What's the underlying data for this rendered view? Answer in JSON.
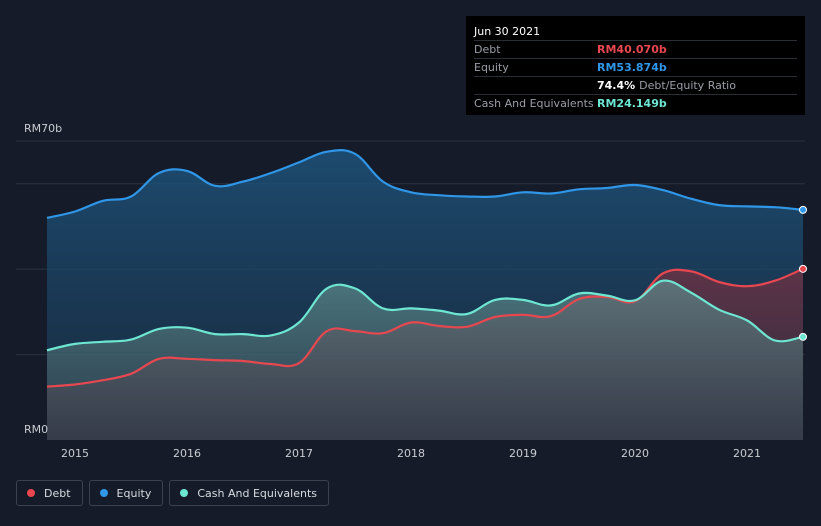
{
  "colors": {
    "debt": "#e8474f",
    "equity": "#2f96e8",
    "cash": "#6de6d2",
    "background": "#151b28",
    "grid": "#2b3240",
    "axis_text": "#c9ccd1"
  },
  "tooltip": {
    "date": "Jun 30 2021",
    "rows": [
      {
        "label": "Debt",
        "value": "RM40.070b",
        "color": "#e8474f",
        "suffix": ""
      },
      {
        "label": "Equity",
        "value": "RM53.874b",
        "color": "#2f96e8",
        "suffix": ""
      },
      {
        "label": "",
        "value": "74.4%",
        "color": "#ffffff",
        "suffix": "Debt/Equity Ratio"
      },
      {
        "label": "Cash And Equivalents",
        "value": "RM24.149b",
        "color": "#6de6d2",
        "suffix": ""
      }
    ]
  },
  "legend": [
    {
      "label": "Debt",
      "color": "#e8474f"
    },
    {
      "label": "Equity",
      "color": "#2f96e8"
    },
    {
      "label": "Cash And Equivalents",
      "color": "#6de6d2"
    }
  ],
  "chart_data": {
    "type": "area",
    "title": "",
    "xlabel": "",
    "ylabel": "",
    "ylim": [
      0,
      70
    ],
    "xlim": [
      2014.75,
      2021.5
    ],
    "y_tick_labels": [
      {
        "value": 70,
        "label": "RM70b"
      },
      {
        "value": 0,
        "label": "RM0"
      }
    ],
    "gridlines": [
      70,
      60,
      40,
      20
    ],
    "x_ticks": [
      2015,
      2016,
      2017,
      2018,
      2019,
      2020,
      2021
    ],
    "x_tick_labels": [
      "2015",
      "2016",
      "2017",
      "2018",
      "2019",
      "2020",
      "2021"
    ],
    "grid": true,
    "legend_position": "bottom-left",
    "series": [
      {
        "name": "Equity",
        "color": "#2f96e8",
        "points": [
          [
            2014.75,
            52.0
          ],
          [
            2015.0,
            53.5
          ],
          [
            2015.25,
            56.0
          ],
          [
            2015.5,
            57.0
          ],
          [
            2015.75,
            62.5
          ],
          [
            2016.0,
            63.0
          ],
          [
            2016.25,
            59.5
          ],
          [
            2016.5,
            60.5
          ],
          [
            2016.75,
            62.5
          ],
          [
            2017.0,
            65.0
          ],
          [
            2017.25,
            67.5
          ],
          [
            2017.5,
            67.0
          ],
          [
            2017.75,
            60.5
          ],
          [
            2018.0,
            58.0
          ],
          [
            2018.25,
            57.3
          ],
          [
            2018.5,
            57.0
          ],
          [
            2018.75,
            57.0
          ],
          [
            2019.0,
            58.0
          ],
          [
            2019.25,
            57.7
          ],
          [
            2019.5,
            58.7
          ],
          [
            2019.75,
            59.0
          ],
          [
            2020.0,
            59.7
          ],
          [
            2020.25,
            58.5
          ],
          [
            2020.5,
            56.5
          ],
          [
            2020.75,
            55.0
          ],
          [
            2021.0,
            54.7
          ],
          [
            2021.25,
            54.5
          ],
          [
            2021.5,
            53.874
          ]
        ]
      },
      {
        "name": "Debt",
        "color": "#e8474f",
        "points": [
          [
            2014.75,
            12.5
          ],
          [
            2015.0,
            13.0
          ],
          [
            2015.25,
            14.0
          ],
          [
            2015.5,
            15.5
          ],
          [
            2015.75,
            19.0
          ],
          [
            2016.0,
            19.0
          ],
          [
            2016.25,
            18.7
          ],
          [
            2016.5,
            18.5
          ],
          [
            2016.75,
            17.8
          ],
          [
            2017.0,
            18.0
          ],
          [
            2017.25,
            25.5
          ],
          [
            2017.5,
            25.5
          ],
          [
            2017.75,
            25.0
          ],
          [
            2018.0,
            27.5
          ],
          [
            2018.25,
            26.7
          ],
          [
            2018.5,
            26.5
          ],
          [
            2018.75,
            28.8
          ],
          [
            2019.0,
            29.3
          ],
          [
            2019.25,
            29.0
          ],
          [
            2019.5,
            33.0
          ],
          [
            2019.75,
            33.5
          ],
          [
            2020.0,
            32.5
          ],
          [
            2020.25,
            39.0
          ],
          [
            2020.5,
            39.5
          ],
          [
            2020.75,
            37.0
          ],
          [
            2021.0,
            36.0
          ],
          [
            2021.25,
            37.3
          ],
          [
            2021.5,
            40.07
          ]
        ]
      },
      {
        "name": "Cash And Equivalents",
        "color": "#6de6d2",
        "points": [
          [
            2014.75,
            21.0
          ],
          [
            2015.0,
            22.5
          ],
          [
            2015.25,
            23.0
          ],
          [
            2015.5,
            23.5
          ],
          [
            2015.75,
            26.0
          ],
          [
            2016.0,
            26.3
          ],
          [
            2016.25,
            24.8
          ],
          [
            2016.5,
            24.8
          ],
          [
            2016.75,
            24.5
          ],
          [
            2017.0,
            27.5
          ],
          [
            2017.25,
            35.5
          ],
          [
            2017.5,
            35.5
          ],
          [
            2017.75,
            30.8
          ],
          [
            2018.0,
            30.8
          ],
          [
            2018.25,
            30.3
          ],
          [
            2018.5,
            29.5
          ],
          [
            2018.75,
            32.8
          ],
          [
            2019.0,
            32.8
          ],
          [
            2019.25,
            31.5
          ],
          [
            2019.5,
            34.3
          ],
          [
            2019.75,
            33.8
          ],
          [
            2020.0,
            32.7
          ],
          [
            2020.25,
            37.3
          ],
          [
            2020.5,
            34.5
          ],
          [
            2020.75,
            30.5
          ],
          [
            2021.0,
            28.0
          ],
          [
            2021.25,
            23.3
          ],
          [
            2021.5,
            24.149
          ]
        ]
      }
    ]
  }
}
